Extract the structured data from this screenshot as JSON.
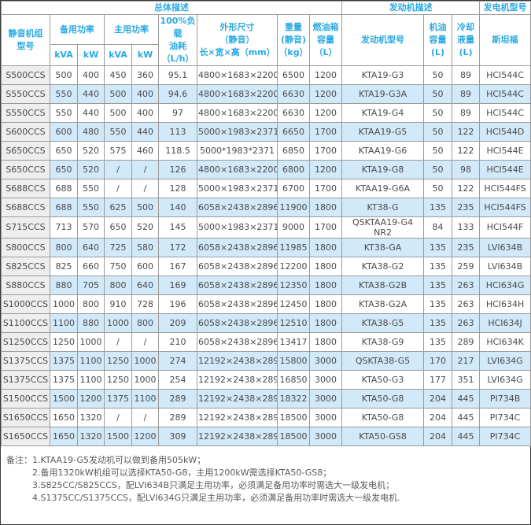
{
  "table": {
    "header": {
      "group_overall": "总体描述",
      "group_engine": "发动机描述",
      "group_genset": "发电机型号",
      "model": "静音机组\n型号",
      "standby_power": "备用功率",
      "prime_power": "主用功率",
      "kva": "kVA",
      "kw": "kW",
      "fuel": "100%负载\n油耗\n（L/h）",
      "dimensions": "外形尺寸\n（静音）\n长×宽×高（mm）",
      "weight": "重量\n(静音)\n（kg）",
      "tank": "燃油箱\n容量\n（L）",
      "engine_model": "发动机型号",
      "oil": "机油\n容量\n(L)",
      "coolant": "冷却\n液量\n(L)",
      "stamford": "斯坦福"
    },
    "column_keys": [
      "model",
      "standby-kva",
      "standby-kw",
      "prime-kva",
      "prime-kw",
      "fuel-consumption",
      "dimensions",
      "weight",
      "fuel-tank",
      "engine-model",
      "oil-capacity",
      "coolant-capacity",
      "alternator"
    ],
    "rows": [
      [
        "S500CCS",
        "500",
        "400",
        "450",
        "360",
        "95.1",
        "4800×1683×2200",
        "6500",
        "1200",
        "KTA19-G3",
        "50",
        "89",
        "HCI544C"
      ],
      [
        "S550CCS",
        "550",
        "440",
        "500",
        "400",
        "94.6",
        "4800×1683×2200",
        "6630",
        "1200",
        "KTA19-G3A",
        "50",
        "89",
        "HCI544C"
      ],
      [
        "S550CCS",
        "550",
        "440",
        "500",
        "400",
        "97",
        "4800×1683×2200",
        "6630",
        "1200",
        "KTA19-G4",
        "50",
        "89",
        "HCI544C"
      ],
      [
        "S600CCS",
        "600",
        "480",
        "550",
        "440",
        "113",
        "5000×1983×2371",
        "6650",
        "1700",
        "KTAA19-G5",
        "50",
        "122",
        "HCI544D"
      ],
      [
        "S650CCS",
        "650",
        "520",
        "575",
        "460",
        "118.5",
        "5000*1983*2371",
        "6850",
        "1700",
        "KTAA19-G6",
        "50",
        "122",
        "HCI544E"
      ],
      [
        "S650CCS",
        "650",
        "520",
        "/",
        "/",
        "126",
        "4800×1683×2200",
        "6800",
        "1200",
        "KTA19-G8",
        "50",
        "98",
        "HCI544E"
      ],
      [
        "S688CCS",
        "688",
        "550",
        "/",
        "/",
        "128",
        "5000×1983×2371",
        "6700",
        "1700",
        "KTAA19-G6A",
        "50",
        "122",
        "HCI544FS"
      ],
      [
        "S688CCS",
        "688",
        "550",
        "625",
        "500",
        "140",
        "6058×2438×2896",
        "11900",
        "1800",
        "KT38-G",
        "135",
        "235",
        "HCI544FS"
      ],
      [
        "S715CCS",
        "713",
        "570",
        "650",
        "520",
        "145",
        "5000×1983×2371",
        "9000",
        "1700",
        "QSKTAA19-G4 NR2",
        "84",
        "133",
        "HCI544F"
      ],
      [
        "S800CCS",
        "800",
        "640",
        "725",
        "580",
        "172",
        "6058×2438×2896",
        "11985",
        "1800",
        "KT38-GA",
        "135",
        "235",
        "LVI634B"
      ],
      [
        "S825CCS",
        "825",
        "660",
        "750",
        "600",
        "167",
        "6058×2438×2896",
        "12200",
        "1800",
        "KTA38-G2",
        "135",
        "259",
        "LVI634B"
      ],
      [
        "S880CCS",
        "880",
        "705",
        "800",
        "640",
        "169",
        "6058×2438×2896",
        "12350",
        "1800",
        "KTA38-G2B",
        "135",
        "263",
        "HCI634G"
      ],
      [
        "S1000CCS",
        "1000",
        "800",
        "910",
        "728",
        "196",
        "6058×2438×2896",
        "12450",
        "1800",
        "KTA38-G2A",
        "135",
        "263",
        "HCI634H"
      ],
      [
        "S1100CCS",
        "1100",
        "880",
        "1000",
        "800",
        "209",
        "6058×2438×2896",
        "12510",
        "1800",
        "KTA38-G5",
        "135",
        "263",
        "HCI634J"
      ],
      [
        "S1250CCS",
        "1250",
        "1000",
        "/",
        "/",
        "210",
        "6058×2438×2896",
        "13417",
        "1800",
        "KTA38-G9",
        "135",
        "289",
        "HCI634K"
      ],
      [
        "S1375CCS",
        "1375",
        "1100",
        "1250",
        "1000",
        "274",
        "12192×2438×2896",
        "15800",
        "3000",
        "QSKTA38-G5",
        "170",
        "217",
        "LVI634G"
      ],
      [
        "S1375CCS",
        "1375",
        "1100",
        "1250",
        "1000",
        "254",
        "12192×2438×2896",
        "16850",
        "3000",
        "KTA50-G3",
        "177",
        "351",
        "LVI634G"
      ],
      [
        "S1500CCS",
        "1500",
        "1200",
        "1375",
        "1100",
        "289",
        "12192×2438×2896",
        "18322",
        "3000",
        "KTA50-G8",
        "204",
        "445",
        "PI734B"
      ],
      [
        "S1650CCS",
        "1650",
        "1320",
        "/",
        "/",
        "289",
        "12192×2438×2896",
        "18500",
        "3000",
        "KTA50-G8",
        "204",
        "445",
        "PI734C"
      ],
      [
        "S1650CCS",
        "1650",
        "1320",
        "1500",
        "1200",
        "309",
        "12192×2438×2896",
        "18500",
        "3000",
        "KTA50-GS8",
        "204",
        "445",
        "PI734C"
      ]
    ]
  },
  "notes": {
    "label": "备注：",
    "items": [
      "1.KTAA19-G5发动机可以做到备用505kW；",
      "2.备用1320kW机组可以选择KTA50-G8，主用1200kW需选择KTA50-GS8；",
      "3.S825CC/S825CCS，配LVI634B只满足主用功率，必须满足备用功率时需选大一级发电机；",
      "4.S1375CC/S1375CCS，配LVI634G只满足主用功率，必须满足备用功率时需选大一级发电机."
    ]
  },
  "colors": {
    "accent_cyan": "#2aa9e1",
    "row_alt_blue": "#d2e9fa",
    "model_col_gray": "#eeeeee",
    "border_gray": "#9b9b9b",
    "text_dark": "#4a4a4a"
  }
}
